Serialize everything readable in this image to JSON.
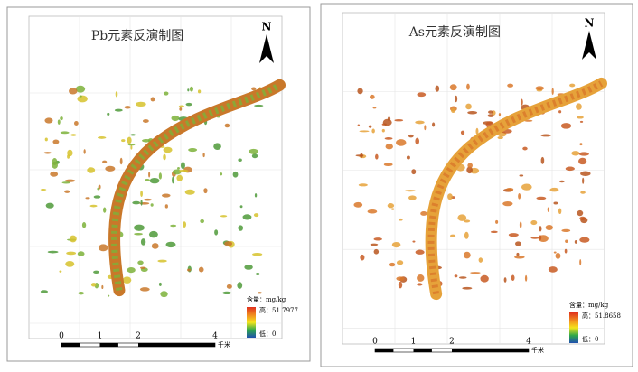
{
  "maps": [
    {
      "title": "Pb元素反演制图",
      "north": "N",
      "legend": {
        "title": "含量：mg/kg",
        "high": "高：51.7977",
        "low": "低：0"
      },
      "scale": {
        "ticks": [
          "0",
          "1",
          "2",
          "4"
        ],
        "unit": "千米"
      }
    },
    {
      "title": "As元素反演制图",
      "north": "N",
      "legend": {
        "title": "含量：mg/kg",
        "high": "高：51.8658",
        "low": "低：0"
      },
      "scale": {
        "ticks": [
          "0",
          "1",
          "2",
          "4"
        ],
        "unit": "千米"
      }
    }
  ]
}
